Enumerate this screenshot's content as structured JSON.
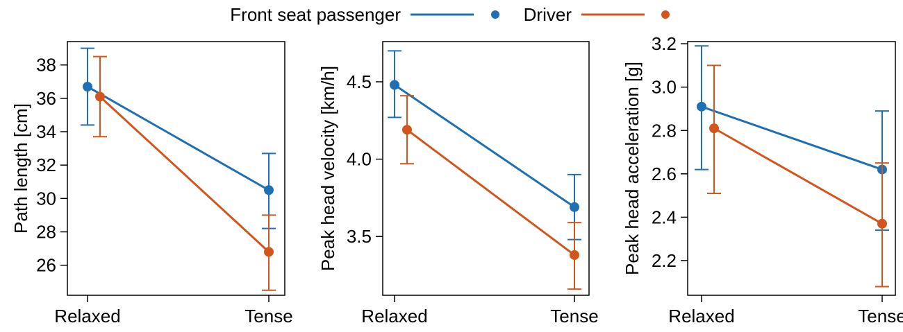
{
  "legend": {
    "items": [
      {
        "label": "Front seat passenger",
        "color": "#1f6fb4"
      },
      {
        "label": "Driver",
        "color": "#d2561b"
      }
    ]
  },
  "chart_data": [
    {
      "type": "line",
      "categories": [
        "Relaxed",
        "Tense"
      ],
      "ylabel": "Path length [cm]",
      "yticks": [
        26,
        28,
        30,
        32,
        34,
        36,
        38
      ],
      "ylim": [
        24.2,
        39.4
      ],
      "series": [
        {
          "name": "Front seat passenger",
          "values": [
            36.7,
            30.5
          ],
          "err_low": [
            34.4,
            28.2
          ],
          "err_high": [
            39.0,
            32.7
          ]
        },
        {
          "name": "Driver",
          "values": [
            36.1,
            26.8
          ],
          "err_low": [
            33.7,
            24.5
          ],
          "err_high": [
            38.5,
            29.0
          ]
        }
      ]
    },
    {
      "type": "line",
      "categories": [
        "Relaxed",
        "Tense"
      ],
      "ylabel": "Peak head velocity [km/h]",
      "yticks": [
        3.5,
        4.0,
        4.5
      ],
      "ylim": [
        3.12,
        4.76
      ],
      "series": [
        {
          "name": "Front seat passenger",
          "values": [
            4.48,
            3.69
          ],
          "err_low": [
            4.27,
            3.48
          ],
          "err_high": [
            4.7,
            3.9
          ]
        },
        {
          "name": "Driver",
          "values": [
            4.19,
            3.38
          ],
          "err_low": [
            3.97,
            3.16
          ],
          "err_high": [
            4.41,
            3.59
          ]
        }
      ]
    },
    {
      "type": "line",
      "categories": [
        "Relaxed",
        "Tense"
      ],
      "ylabel": "Peak head acceleration [g]",
      "yticks": [
        2.2,
        2.4,
        2.6,
        2.8,
        3.0,
        3.2
      ],
      "ylim": [
        2.04,
        3.21
      ],
      "series": [
        {
          "name": "Front seat passenger",
          "values": [
            2.91,
            2.62
          ],
          "err_low": [
            2.62,
            2.34
          ],
          "err_high": [
            3.19,
            2.89
          ]
        },
        {
          "name": "Driver",
          "values": [
            2.81,
            2.37
          ],
          "err_low": [
            2.51,
            2.08
          ],
          "err_high": [
            3.1,
            2.65
          ]
        }
      ]
    }
  ]
}
